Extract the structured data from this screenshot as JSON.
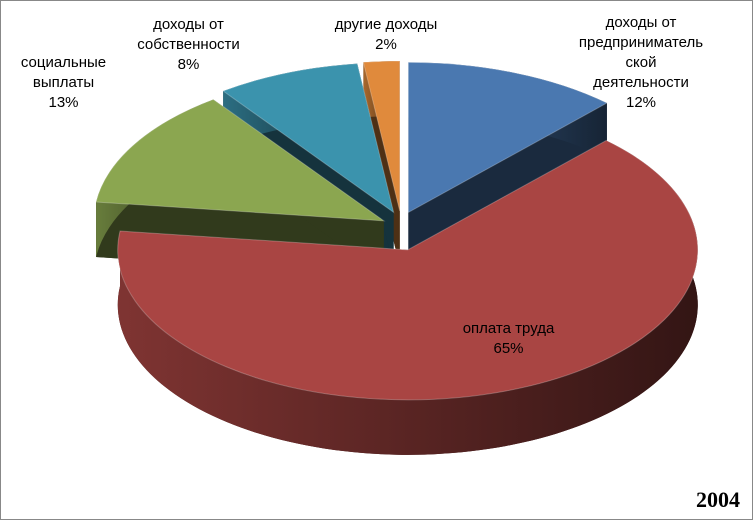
{
  "chart_data": {
    "type": "pie3d",
    "title": "2004",
    "categories": [
      "доходы от предпринимательской деятельности",
      "оплата труда",
      "социальные выплаты",
      "доходы от собственности",
      "другие доходы"
    ],
    "values": [
      12,
      65,
      13,
      8,
      2
    ],
    "value_labels": [
      "12%",
      "65%",
      "13%",
      "8%",
      "2%"
    ],
    "colors": [
      "#4a78b0",
      "#a94543",
      "#8ba650",
      "#3b93ad",
      "#e08a3c"
    ]
  }
}
